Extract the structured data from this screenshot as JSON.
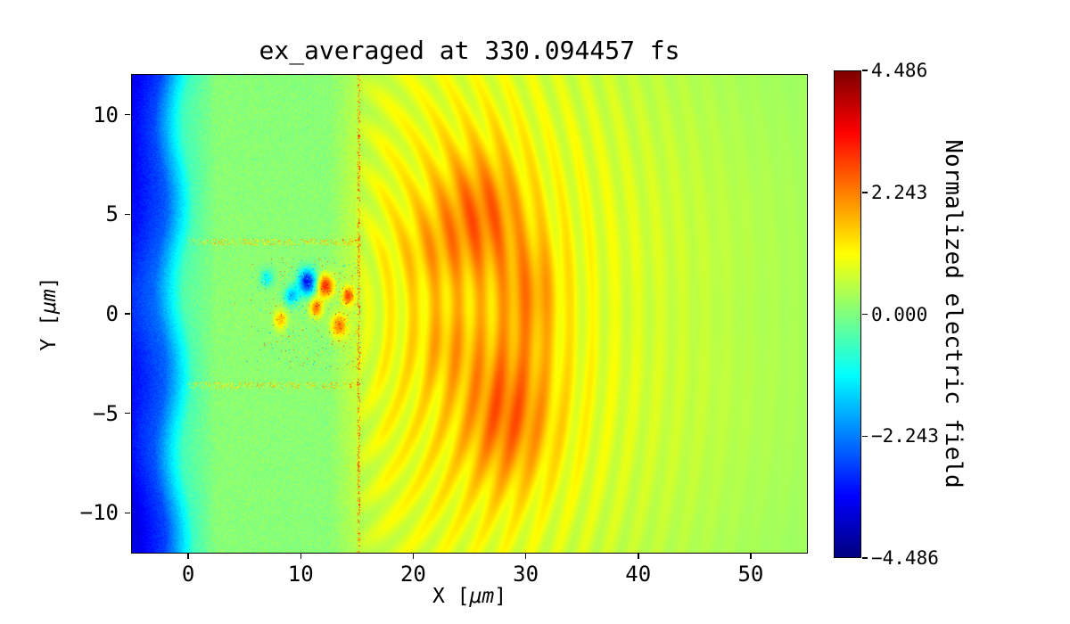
{
  "figure": {
    "background": "#ffffff"
  },
  "chart_data": {
    "type": "heatmap",
    "title": "ex_averaged at 330.094457 fs",
    "xlabel": {
      "prefix": "X [",
      "unit": "μm",
      "suffix": "]"
    },
    "ylabel": {
      "prefix": "Y [",
      "unit": "μm",
      "suffix": "]"
    },
    "xlim": [
      -5,
      55
    ],
    "ylim": [
      -12,
      12
    ],
    "x_ticks": [
      {
        "value": 0,
        "label": "0"
      },
      {
        "value": 10,
        "label": "10"
      },
      {
        "value": 20,
        "label": "20"
      },
      {
        "value": 30,
        "label": "30"
      },
      {
        "value": 40,
        "label": "40"
      },
      {
        "value": 50,
        "label": "50"
      }
    ],
    "y_ticks": [
      {
        "value": 10,
        "label": "10"
      },
      {
        "value": 5,
        "label": "5"
      },
      {
        "value": 0,
        "label": "0"
      },
      {
        "value": -5,
        "label": "−5"
      },
      {
        "value": -10,
        "label": "−10"
      }
    ],
    "colormap": "jet",
    "clim": [
      -4.486,
      4.486
    ],
    "colorbar": {
      "label": "Normalized electric field",
      "ticks": [
        {
          "value": 4.486,
          "label": "4.486"
        },
        {
          "value": 2.243,
          "label": "2.243"
        },
        {
          "value": 0,
          "label": "0.000"
        },
        {
          "value": -2.243,
          "label": "−2.243"
        },
        {
          "value": -4.486,
          "label": "−4.486"
        }
      ]
    },
    "field": {
      "description": "Laser-plasma simulation field: blue vacuum band at left (x<0, v≈-3), quiet plasma slab 0<x<15 (v≈0.1) with speckle noise stripes at y≈±3.6 and a noisy core near y=0, sharp speckled rear edge at x≈15, yellow-orange wake wavefronts radiating for x>15 with bright orange lobes near (26,5) and (28.5,-5), fading to green by x≈55.",
      "grid_x": [
        -5,
        -2.5,
        0,
        2.5,
        5,
        7.5,
        10,
        12.5,
        15,
        17.5,
        20,
        22.5,
        25,
        27.5,
        30,
        32.5,
        35,
        40,
        45,
        50,
        55
      ],
      "grid_y": [
        -12,
        -9,
        -6,
        -3,
        0,
        3,
        6,
        9,
        12
      ],
      "values": [
        [
          -3.6,
          -2.8,
          -0.6,
          0.08,
          0.08,
          0.08,
          0.08,
          0.08,
          0.45,
          0.75,
          0.83,
          0.9,
          0.9,
          0.9,
          0.83,
          0.75,
          0.71,
          0.56,
          0.45,
          0.34,
          0.26
        ],
        [
          -3.6,
          -2.7,
          -0.55,
          0.09,
          0.09,
          0.09,
          0.09,
          0.09,
          0.54,
          0.9,
          0.99,
          1.08,
          1.08,
          1.08,
          0.99,
          0.9,
          0.85,
          0.67,
          0.54,
          0.4,
          0.31
        ],
        [
          -3.3,
          -2.6,
          -0.5,
          0.1,
          0.1,
          0.1,
          0.1,
          0.1,
          0.6,
          1.0,
          1.1,
          1.2,
          1.2,
          1.2,
          1.1,
          1.0,
          0.95,
          0.75,
          0.6,
          0.45,
          0.35
        ],
        [
          -3.2,
          -2.5,
          -0.45,
          0.1,
          0.12,
          0.12,
          0.12,
          0.12,
          0.63,
          1.05,
          1.15,
          1.25,
          1.25,
          1.25,
          1.15,
          1.05,
          1.0,
          0.79,
          0.63,
          0.47,
          0.36
        ],
        [
          -3.0,
          -2.4,
          -0.4,
          0.12,
          0.15,
          0.15,
          0.15,
          0.15,
          0.6,
          1.0,
          1.1,
          1.2,
          1.2,
          1.2,
          1.1,
          1.0,
          0.95,
          0.75,
          0.6,
          0.45,
          0.35
        ],
        [
          -3.2,
          -2.5,
          -0.45,
          0.1,
          0.12,
          0.12,
          0.12,
          0.12,
          0.63,
          1.05,
          1.15,
          1.25,
          1.25,
          1.25,
          1.15,
          1.05,
          1.0,
          0.79,
          0.63,
          0.47,
          0.36
        ],
        [
          -3.3,
          -2.6,
          -0.5,
          0.1,
          0.1,
          0.1,
          0.1,
          0.1,
          0.6,
          1.0,
          1.1,
          1.2,
          1.2,
          1.2,
          1.1,
          1.0,
          0.95,
          0.75,
          0.6,
          0.45,
          0.35
        ],
        [
          -3.6,
          -2.7,
          -0.55,
          0.09,
          0.09,
          0.09,
          0.09,
          0.09,
          0.54,
          0.9,
          0.99,
          1.08,
          1.08,
          1.08,
          0.99,
          0.9,
          0.85,
          0.67,
          0.54,
          0.4,
          0.31
        ],
        [
          -3.6,
          -2.8,
          -0.6,
          0.08,
          0.08,
          0.08,
          0.08,
          0.08,
          0.45,
          0.75,
          0.83,
          0.9,
          0.9,
          0.9,
          0.83,
          0.75,
          0.71,
          0.56,
          0.45,
          0.34,
          0.26
        ]
      ],
      "ripples": {
        "center_x": 12,
        "center_y": 0,
        "wavelength": 2.0,
        "amplitude": 0.3,
        "x_start": 15.2
      },
      "hotspots": [
        {
          "x": 26,
          "y": 5,
          "sx": 2.6,
          "sy": 2.2,
          "v": 1.2
        },
        {
          "x": 28.5,
          "y": -5,
          "sx": 2.8,
          "sy": 2.6,
          "v": 1.3
        },
        {
          "x": 30.5,
          "y": 1,
          "sx": 1.8,
          "sy": 2.0,
          "v": 0.9
        },
        {
          "x": 23,
          "y": -1.5,
          "sx": 2.0,
          "sy": 1.5,
          "v": 0.5
        },
        {
          "x": 21.5,
          "y": 3.2,
          "sx": 2.0,
          "sy": 1.5,
          "v": 0.45
        },
        {
          "x": 10.6,
          "y": 1.6,
          "sx": 0.55,
          "sy": 0.45,
          "v": -3.4
        },
        {
          "x": 12.2,
          "y": 1.4,
          "sx": 0.5,
          "sy": 0.4,
          "v": 2.9
        },
        {
          "x": 9.2,
          "y": 0.9,
          "sx": 0.45,
          "sy": 0.35,
          "v": -1.8
        },
        {
          "x": 11.4,
          "y": 0.3,
          "sx": 0.4,
          "sy": 0.35,
          "v": 2.2
        },
        {
          "x": 13.4,
          "y": -0.6,
          "sx": 0.5,
          "sy": 0.4,
          "v": 2.0
        },
        {
          "x": 8.2,
          "y": -0.3,
          "sx": 0.4,
          "sy": 0.35,
          "v": 1.6
        },
        {
          "x": 14.2,
          "y": 0.9,
          "sx": 0.35,
          "sy": 0.3,
          "v": 2.4
        },
        {
          "x": 7.0,
          "y": 1.8,
          "sx": 0.4,
          "sy": 0.3,
          "v": -1.3
        }
      ],
      "speckles": {
        "slab_x": [
          0,
          15.4
        ],
        "slab_amp": 0.5,
        "stripe_y": [
          3.6,
          -3.6
        ],
        "stripe_halfwidth": 0.16,
        "stripe_prob": 0.3,
        "stripe_amp": 2.2,
        "core_x": [
          4,
          15.4
        ],
        "core_y": 2.8,
        "core_prob": 0.05,
        "core_amp": 5.0,
        "edge_x": 15.15,
        "edge_halfwidth": 0.12,
        "edge_prob": 0.4,
        "edge_amp": 3.0
      }
    }
  }
}
